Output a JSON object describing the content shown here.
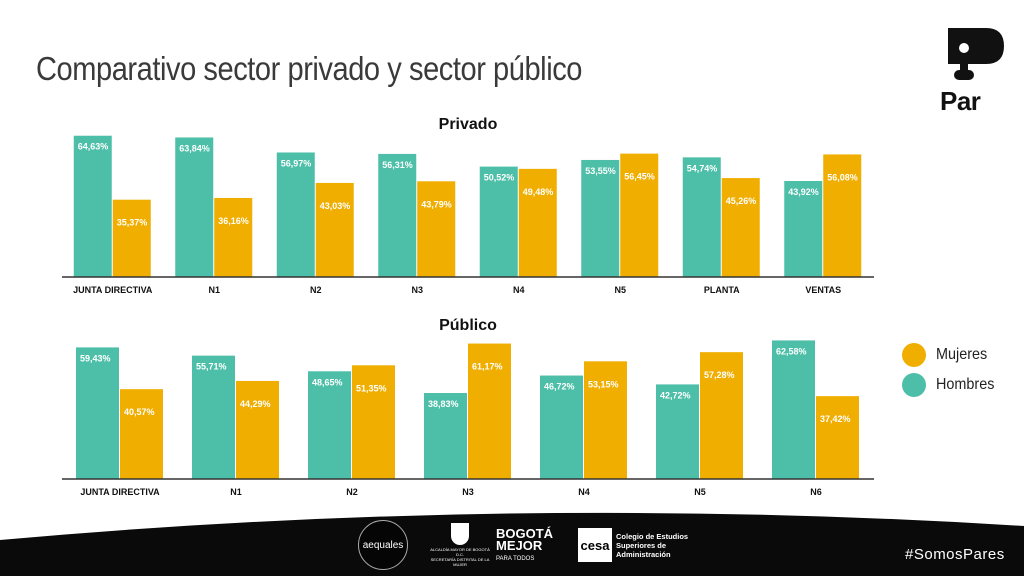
{
  "title": "Comparativo sector privado y sector público",
  "logo": {
    "word": "Par",
    "icon": "par-face-logo-icon"
  },
  "colors": {
    "mujeres": "#f0ae00",
    "hombres": "#4dbfa8",
    "axis": "#333333",
    "label_on_teal": "#ffffff",
    "label_on_gold": "#ffffff",
    "footer": "#0a0a0a"
  },
  "legend": {
    "mujeres": "Mujeres",
    "hombres": "Hombres"
  },
  "chart_data": [
    {
      "type": "bar",
      "title": "Privado",
      "categories": [
        "JUNTA DIRECTIVA",
        "N1",
        "N2",
        "N3",
        "N4",
        "N5",
        "PLANTA",
        "VENTAS"
      ],
      "series": [
        {
          "name": "Hombres",
          "values": [
            64.63,
            63.84,
            56.97,
            56.31,
            50.52,
            53.55,
            54.74,
            43.92
          ],
          "labels": [
            "64,63%",
            "63,84%",
            "56,97%",
            "56,31%",
            "50,52%",
            "53,55%",
            "54,74%",
            "43,92%"
          ]
        },
        {
          "name": "Mujeres",
          "values": [
            35.37,
            36.16,
            43.03,
            43.79,
            49.48,
            56.45,
            45.26,
            56.08
          ],
          "labels": [
            "35,37%",
            "36,16%",
            "43,03%",
            "43,79%",
            "49,48%",
            "56,45%",
            "45,26%",
            "56,08%"
          ]
        }
      ],
      "ylim": [
        0,
        70
      ],
      "grid": false,
      "legend_position": "right"
    },
    {
      "type": "bar",
      "title": "Público",
      "categories": [
        "JUNTA DIRECTIVA",
        "N1",
        "N2",
        "N3",
        "N4",
        "N5",
        "N6"
      ],
      "series": [
        {
          "name": "Hombres",
          "values": [
            59.43,
            55.71,
            48.65,
            38.83,
            46.72,
            42.72,
            62.58
          ],
          "labels": [
            "59,43%",
            "55,71%",
            "48,65%",
            "38,83%",
            "46,72%",
            "42,72%",
            "62,58%"
          ]
        },
        {
          "name": "Mujeres",
          "values": [
            40.57,
            44.29,
            51.35,
            61.17,
            53.15,
            57.28,
            37.42
          ],
          "labels": [
            "40,57%",
            "44,29%",
            "51,35%",
            "61,17%",
            "53,15%",
            "57,28%",
            "37,42%"
          ]
        }
      ],
      "ylim": [
        0,
        70
      ],
      "grid": false,
      "legend_position": "right"
    }
  ],
  "footer": {
    "logos": {
      "aequales": "aequales",
      "alcaldia": "ALCALDÍA MAYOR DE BOGOTÁ D.C.",
      "secretaria": "SECRETARÍA DISTRITAL DE LA MUJER",
      "bogota_line1": "BOGOTÁ",
      "bogota_line2": "MEJOR",
      "bogota_line3": "PARA TODOS",
      "cesa_mark": "cesa",
      "cesa_line1": "Colegio de Estudios",
      "cesa_line2": "Superiores de Administración"
    },
    "hashtag": "#SomosPares"
  }
}
